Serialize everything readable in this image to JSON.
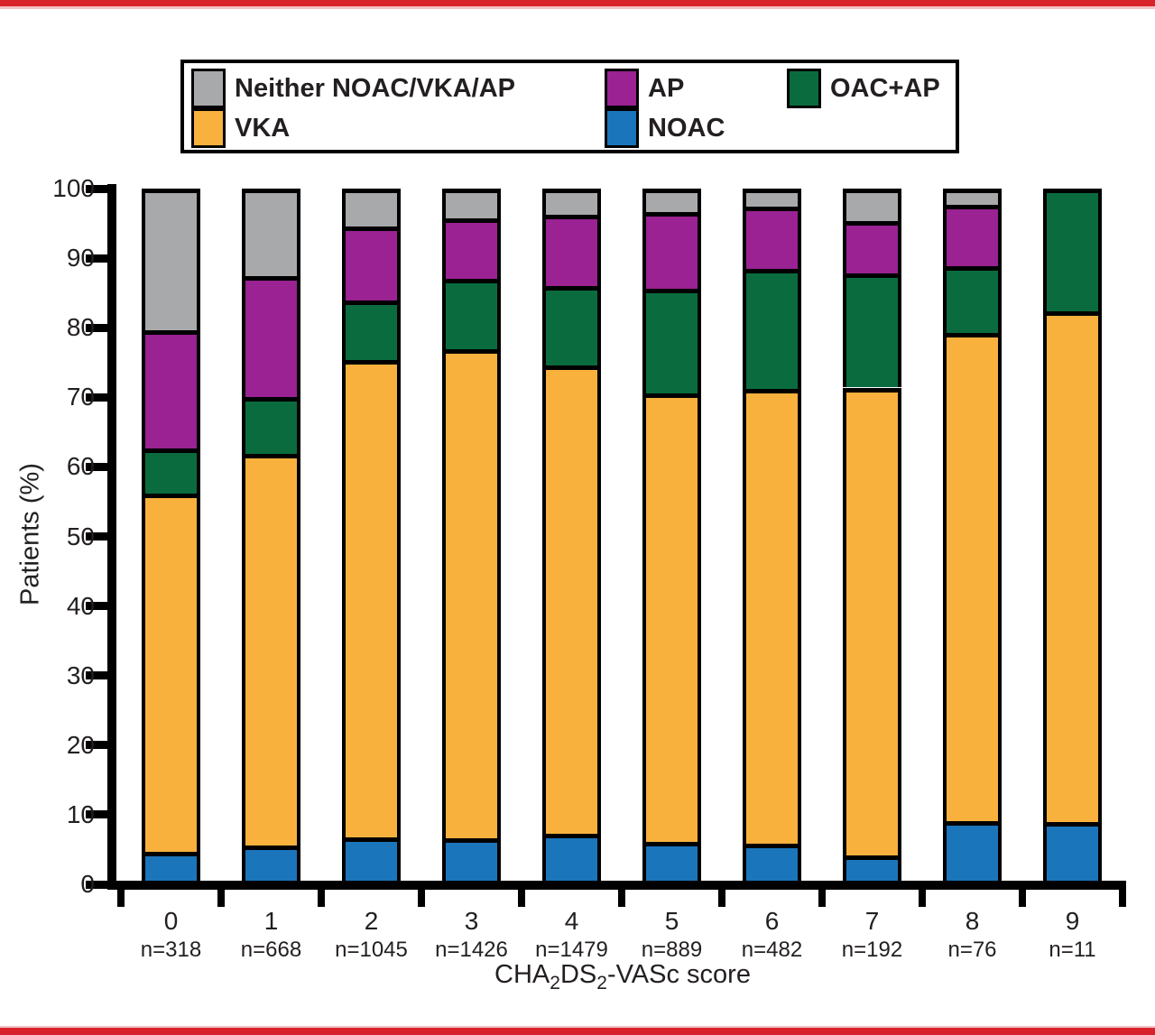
{
  "page": {
    "accent_red": "#d9232a",
    "background": "#ffffff"
  },
  "legend": {
    "items": [
      {
        "key": "neither",
        "label": "Neither NOAC/VKA/AP",
        "color": "#a7a9ab"
      },
      {
        "key": "vka",
        "label": "VKA",
        "color": "#f9b13d"
      },
      {
        "key": "ap",
        "label": "AP",
        "color": "#9a2292"
      },
      {
        "key": "noac",
        "label": "NOAC",
        "color": "#1b75bb"
      },
      {
        "key": "oacap",
        "label": "OAC+AP",
        "color": "#0a6c3e"
      }
    ]
  },
  "chart_data": {
    "type": "bar",
    "subtype": "stacked-percent",
    "ylabel": "Patients (%)",
    "xlabel_parts": [
      "CHA",
      "2",
      "DS",
      "2",
      "-VASc score"
    ],
    "ylim": [
      0,
      100
    ],
    "ytick_interval": 10,
    "grid": false,
    "legend_position": "top",
    "categories": [
      "0",
      "1",
      "2",
      "3",
      "4",
      "5",
      "6",
      "7",
      "8",
      "9"
    ],
    "counts": [
      "n=318",
      "n=668",
      "n=1045",
      "n=1426",
      "n=1479",
      "n=889",
      "n=482",
      "n=192",
      "n=76",
      "n=11"
    ],
    "stack_order_note": "bottom to top",
    "series": [
      {
        "name": "NOAC",
        "key": "noac",
        "color": "#1b75bb",
        "values": [
          4.7,
          5.6,
          6.7,
          6.6,
          7.3,
          6.1,
          5.8,
          4.2,
          9.1,
          9.0
        ]
      },
      {
        "name": "VKA",
        "key": "vka",
        "color": "#f9b13d",
        "values": [
          51.5,
          56.3,
          68.7,
          70.3,
          67.3,
          64.5,
          65.4,
          67.2,
          70.2,
          73.3
        ]
      },
      {
        "name": "OAC+AP",
        "key": "oacap",
        "color": "#0a6c3e",
        "values": [
          6.5,
          8.2,
          8.5,
          10.1,
          11.4,
          15.0,
          17.2,
          16.4,
          9.5,
          17.7
        ]
      },
      {
        "name": "AP",
        "key": "ap",
        "color": "#9a2292",
        "values": [
          16.9,
          17.3,
          10.6,
          8.7,
          10.3,
          11.0,
          9.0,
          7.5,
          8.9,
          0
        ]
      },
      {
        "name": "Neither NOAC/VKA/AP",
        "key": "neither",
        "color": "#a7a9ab",
        "values": [
          20.4,
          12.6,
          5.5,
          4.3,
          3.7,
          3.4,
          2.6,
          4.7,
          2.3,
          0
        ]
      }
    ]
  }
}
